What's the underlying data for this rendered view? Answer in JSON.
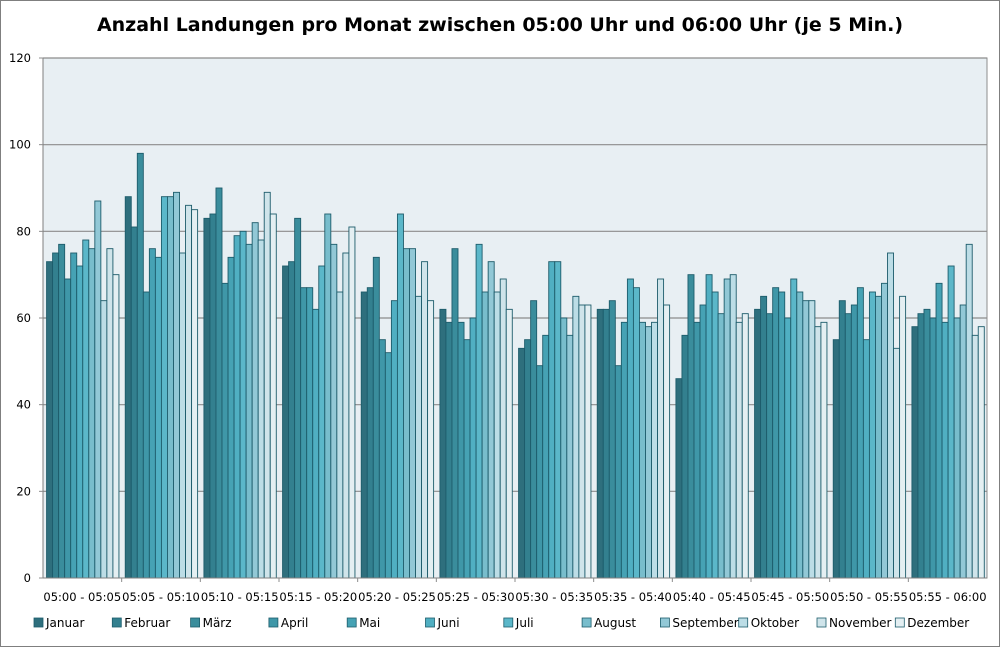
{
  "chart_data": {
    "type": "bar",
    "title": "Anzahl Landungen pro Monat zwischen 05:00 Uhr und 06:00 Uhr (je 5 Min.)",
    "xlabel": "",
    "ylabel": "",
    "ylim": [
      0,
      120
    ],
    "yticks": [
      0,
      20,
      40,
      60,
      80,
      100,
      120
    ],
    "grid": true,
    "legend_position": "bottom",
    "categories": [
      "05:00 - 05:05",
      "05:05 - 05:10",
      "05:10 - 05:15",
      "05:15 - 05:20",
      "05:20 - 05:25",
      "05:25 - 05:30",
      "05:30 - 05:35",
      "05:35 - 05:40",
      "05:40 - 05:45",
      "05:45 - 05:50",
      "05:50 - 05:55",
      "05:55 - 06:00"
    ],
    "series": [
      {
        "name": "Januar",
        "color": "#2e6f7d",
        "values": [
          73,
          88,
          83,
          72,
          66,
          62,
          53,
          62,
          46,
          62,
          55,
          58
        ]
      },
      {
        "name": "Februar",
        "color": "#33808f",
        "values": [
          75,
          81,
          84,
          73,
          67,
          59,
          55,
          62,
          56,
          65,
          64,
          61
        ]
      },
      {
        "name": "März",
        "color": "#3a8d9c",
        "values": [
          77,
          98,
          90,
          83,
          74,
          76,
          64,
          64,
          70,
          61,
          61,
          62
        ]
      },
      {
        "name": "April",
        "color": "#3f97a8",
        "values": [
          69,
          66,
          68,
          67,
          55,
          59,
          49,
          49,
          59,
          67,
          63,
          60
        ]
      },
      {
        "name": "Mai",
        "color": "#46a2b4",
        "values": [
          75,
          76,
          74,
          67,
          52,
          55,
          56,
          59,
          63,
          66,
          67,
          68
        ]
      },
      {
        "name": "Juni",
        "color": "#50afc2",
        "values": [
          72,
          74,
          79,
          62,
          64,
          60,
          73,
          69,
          70,
          60,
          55,
          59
        ]
      },
      {
        "name": "Juli",
        "color": "#5bb7c9",
        "values": [
          78,
          88,
          80,
          72,
          84,
          77,
          73,
          67,
          66,
          69,
          66,
          72
        ]
      },
      {
        "name": "August",
        "color": "#78bdcc",
        "values": [
          76,
          88,
          77,
          84,
          76,
          66,
          60,
          59,
          61,
          66,
          65,
          60
        ]
      },
      {
        "name": "September",
        "color": "#92c8d6",
        "values": [
          87,
          89,
          82,
          77,
          76,
          73,
          56,
          58,
          69,
          64,
          68,
          63
        ]
      },
      {
        "name": "Oktober",
        "color": "#bcdde6",
        "values": [
          64,
          75,
          78,
          66,
          65,
          66,
          65,
          59,
          70,
          64,
          75,
          77
        ]
      },
      {
        "name": "November",
        "color": "#cfe4ea",
        "values": [
          76,
          86,
          89,
          75,
          73,
          69,
          63,
          69,
          59,
          58,
          53,
          56
        ]
      },
      {
        "name": "Dezember",
        "color": "#e4eff2",
        "values": [
          70,
          85,
          84,
          81,
          64,
          62,
          63,
          63,
          61,
          59,
          65,
          58
        ]
      }
    ]
  },
  "colors": {
    "plot_background": "#e8eff3",
    "gridline": "#8c8c8c",
    "bar_outline": "#1d5c6b"
  }
}
